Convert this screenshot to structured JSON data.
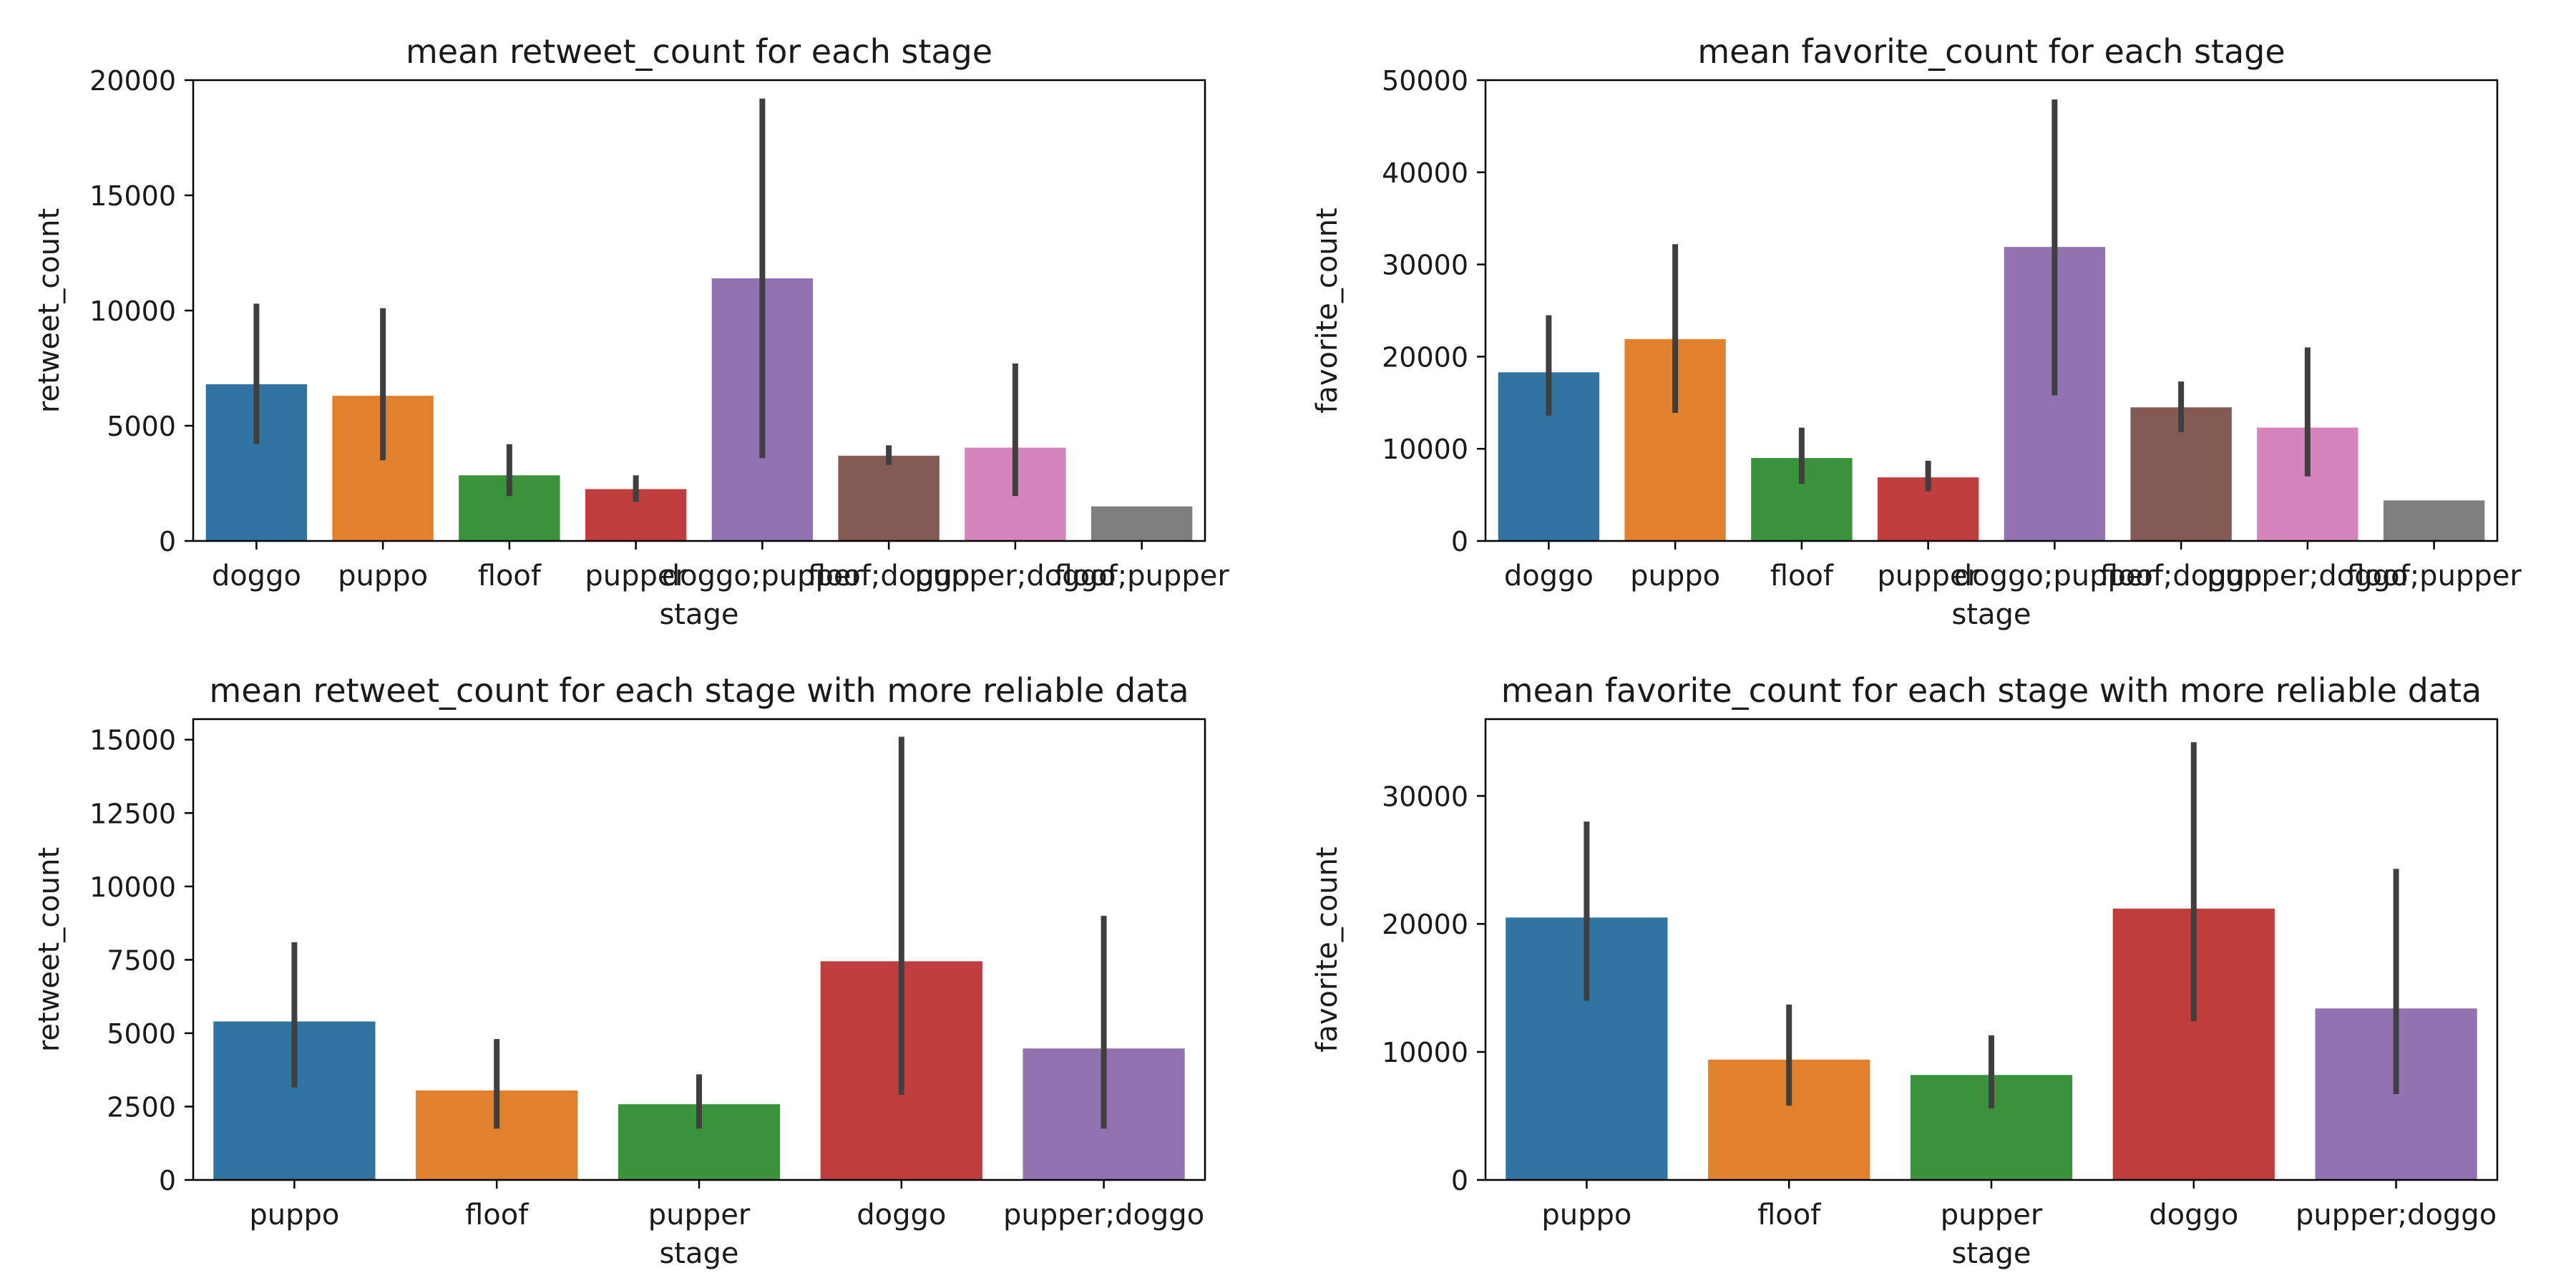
{
  "chart_data": [
    {
      "type": "bar",
      "title": "mean retweet_count for each stage",
      "xlabel": "stage",
      "ylabel": "retweet_count",
      "ylim": [
        0,
        20000
      ],
      "yticks": [
        0,
        5000,
        10000,
        15000,
        20000
      ],
      "grid": false,
      "categories": [
        "doggo",
        "puppo",
        "floof",
        "pupper",
        "doggo;pupper",
        "floof;doggo",
        "pupper;doggo",
        "floof;pupper"
      ],
      "values": [
        6800,
        6300,
        2850,
        2250,
        11400,
        3700,
        4050,
        1500
      ],
      "error_low": [
        4200,
        3500,
        1950,
        1700,
        3600,
        3300,
        1950,
        1500
      ],
      "error_high": [
        10300,
        10100,
        4200,
        2850,
        19200,
        4150,
        7700,
        1500
      ],
      "colors": [
        "#3274a1",
        "#e1812c",
        "#3a923a",
        "#c03d3e",
        "#9372b2",
        "#845b53",
        "#d684bd",
        "#7f7f7f"
      ]
    },
    {
      "type": "bar",
      "title": "mean favorite_count for each stage",
      "xlabel": "stage",
      "ylabel": "favorite_count",
      "ylim": [
        0,
        50000
      ],
      "yticks": [
        0,
        10000,
        20000,
        30000,
        40000,
        50000
      ],
      "grid": false,
      "categories": [
        "doggo",
        "puppo",
        "floof",
        "pupper",
        "doggo;pupper",
        "floof;doggo",
        "pupper;doggo",
        "floof;pupper"
      ],
      "values": [
        18300,
        21900,
        9000,
        6900,
        31900,
        14500,
        12300,
        4400
      ],
      "error_low": [
        13600,
        13900,
        6200,
        5400,
        15800,
        11800,
        7000,
        4400
      ],
      "error_high": [
        24500,
        32200,
        12300,
        8700,
        47900,
        17300,
        21000,
        4400
      ],
      "colors": [
        "#3274a1",
        "#e1812c",
        "#3a923a",
        "#c03d3e",
        "#9372b2",
        "#845b53",
        "#d684bd",
        "#7f7f7f"
      ]
    },
    {
      "type": "bar",
      "title": "mean retweet_count for each stage with more reliable data",
      "xlabel": "stage",
      "ylabel": "retweet_count",
      "ylim": [
        0,
        15700
      ],
      "yticks": [
        0,
        2500,
        5000,
        7500,
        10000,
        12500,
        15000
      ],
      "grid": false,
      "categories": [
        "puppo",
        "floof",
        "pupper",
        "doggo",
        "pupper;doggo"
      ],
      "values": [
        5400,
        3050,
        2580,
        7450,
        4480
      ],
      "error_low": [
        3150,
        1750,
        1750,
        2900,
        1750
      ],
      "error_high": [
        8100,
        4800,
        3600,
        15100,
        9000
      ],
      "colors": [
        "#3274a1",
        "#e1812c",
        "#3a923a",
        "#c03d3e",
        "#9372b2"
      ]
    },
    {
      "type": "bar",
      "title": "mean favorite_count for each stage with more reliable data",
      "xlabel": "stage",
      "ylabel": "favorite_count",
      "ylim": [
        0,
        36000
      ],
      "yticks": [
        0,
        10000,
        20000,
        30000
      ],
      "grid": false,
      "categories": [
        "puppo",
        "floof",
        "pupper",
        "doggo",
        "pupper;doggo"
      ],
      "values": [
        20500,
        9400,
        8200,
        21200,
        13400
      ],
      "error_low": [
        14000,
        5800,
        5600,
        12400,
        6700
      ],
      "error_high": [
        28000,
        13700,
        11300,
        34200,
        24300
      ],
      "colors": [
        "#3274a1",
        "#e1812c",
        "#3a923a",
        "#c03d3e",
        "#9372b2"
      ]
    }
  ]
}
